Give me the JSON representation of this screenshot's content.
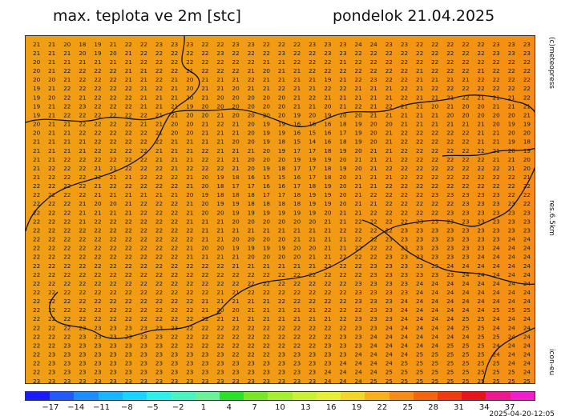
{
  "header": {
    "title": "max. teplota ve 2m [stc]",
    "date": "pondelok 21.04.2025"
  },
  "side_labels": {
    "copyright": "(c)meteopress",
    "resolution": "res.6.5km",
    "model": "icon-eu"
  },
  "footer": {
    "timestamp": "2025-04-20-12:05"
  },
  "colorbar": {
    "tick_labels": [
      "-17",
      "-14",
      "-11",
      "-8",
      "-5",
      "-2",
      "1",
      "4",
      "7",
      "10",
      "13",
      "16",
      "19",
      "22",
      "25",
      "28",
      "31",
      "34",
      "37"
    ],
    "colors": [
      "#1a1aff",
      "#1f5cff",
      "#1d8cff",
      "#1ab4ff",
      "#17d6ff",
      "#2cf0ee",
      "#4cf2c0",
      "#6ef09a",
      "#2ee02e",
      "#76e82c",
      "#a6ee34",
      "#cbf03a",
      "#e6ee3c",
      "#f4d62a",
      "#f5b21e",
      "#f48c17",
      "#f36510",
      "#ef3a12",
      "#ea1418",
      "#f01890",
      "#f020c8"
    ]
  },
  "map_data": {
    "value_grid": [
      [
        21,
        21,
        20,
        18,
        19,
        21,
        22,
        22,
        23,
        23,
        23,
        22,
        22,
        23,
        23,
        22,
        22,
        22,
        23,
        23,
        23,
        24,
        24,
        23,
        23,
        22,
        22,
        22,
        22,
        22,
        23,
        23,
        23
      ],
      [
        21,
        21,
        21,
        20,
        19,
        20,
        21,
        22,
        22,
        22,
        22,
        22,
        23,
        22,
        22,
        22,
        23,
        22,
        22,
        23,
        23,
        22,
        22,
        22,
        22,
        22,
        22,
        22,
        22,
        22,
        23,
        23,
        23
      ],
      [
        20,
        21,
        21,
        21,
        21,
        21,
        21,
        22,
        22,
        22,
        22,
        22,
        22,
        22,
        22,
        21,
        21,
        22,
        22,
        22,
        21,
        22,
        22,
        22,
        22,
        22,
        22,
        22,
        22,
        22,
        22,
        22,
        22
      ],
      [
        20,
        21,
        22,
        22,
        22,
        22,
        21,
        21,
        22,
        22,
        21,
        22,
        22,
        22,
        21,
        20,
        21,
        21,
        22,
        22,
        22,
        22,
        22,
        22,
        22,
        21,
        22,
        22,
        22,
        21,
        22,
        22,
        22
      ],
      [
        20,
        20,
        21,
        22,
        22,
        22,
        21,
        21,
        22,
        21,
        20,
        21,
        21,
        21,
        22,
        21,
        21,
        21,
        21,
        19,
        21,
        22,
        23,
        22,
        22,
        21,
        21,
        21,
        21,
        22,
        22,
        22,
        22
      ],
      [
        19,
        21,
        22,
        22,
        22,
        22,
        22,
        21,
        22,
        21,
        20,
        21,
        21,
        20,
        21,
        21,
        22,
        21,
        21,
        22,
        22,
        21,
        21,
        21,
        22,
        21,
        22,
        22,
        22,
        22,
        22,
        22,
        22
      ],
      [
        19,
        20,
        22,
        21,
        22,
        22,
        22,
        21,
        21,
        21,
        20,
        21,
        20,
        20,
        20,
        20,
        20,
        21,
        22,
        21,
        21,
        21,
        21,
        21,
        22,
        21,
        21,
        21,
        22,
        21,
        21,
        21,
        22
      ],
      [
        19,
        21,
        22,
        23,
        22,
        22,
        22,
        21,
        21,
        21,
        19,
        20,
        20,
        20,
        20,
        20,
        20,
        21,
        21,
        20,
        21,
        22,
        21,
        22,
        21,
        21,
        20,
        21,
        20,
        20,
        21,
        21,
        21
      ],
      [
        19,
        21,
        22,
        22,
        22,
        22,
        22,
        22,
        21,
        21,
        20,
        20,
        21,
        20,
        20,
        20,
        20,
        19,
        20,
        19,
        20,
        20,
        21,
        21,
        21,
        21,
        21,
        20,
        20,
        20,
        20,
        20,
        21
      ],
      [
        20,
        21,
        21,
        22,
        22,
        22,
        22,
        21,
        21,
        20,
        20,
        21,
        22,
        21,
        20,
        19,
        19,
        16,
        16,
        16,
        18,
        19,
        20,
        20,
        21,
        21,
        21,
        21,
        21,
        21,
        20,
        19,
        19
      ],
      [
        20,
        21,
        21,
        22,
        22,
        22,
        22,
        22,
        21,
        20,
        20,
        21,
        21,
        21,
        20,
        19,
        19,
        16,
        15,
        16,
        17,
        19,
        20,
        21,
        22,
        22,
        22,
        22,
        22,
        21,
        21,
        20,
        20
      ],
      [
        21,
        21,
        21,
        21,
        22,
        22,
        22,
        22,
        22,
        21,
        21,
        21,
        21,
        20,
        20,
        19,
        18,
        15,
        14,
        16,
        18,
        19,
        20,
        21,
        22,
        22,
        22,
        22,
        22,
        21,
        21,
        19,
        18
      ],
      [
        21,
        21,
        21,
        21,
        22,
        22,
        22,
        22,
        21,
        21,
        21,
        22,
        21,
        21,
        21,
        20,
        19,
        17,
        17,
        18,
        19,
        20,
        21,
        21,
        22,
        22,
        22,
        22,
        22,
        22,
        21,
        20,
        19
      ],
      [
        21,
        21,
        22,
        22,
        22,
        22,
        22,
        22,
        21,
        21,
        21,
        22,
        21,
        21,
        20,
        20,
        20,
        19,
        19,
        19,
        20,
        21,
        21,
        21,
        22,
        22,
        22,
        22,
        22,
        22,
        21,
        21,
        20
      ],
      [
        21,
        22,
        22,
        22,
        21,
        21,
        22,
        22,
        22,
        21,
        22,
        22,
        22,
        21,
        20,
        19,
        18,
        17,
        17,
        18,
        19,
        20,
        21,
        22,
        22,
        22,
        22,
        22,
        22,
        22,
        22,
        21,
        20
      ],
      [
        21,
        22,
        22,
        22,
        22,
        21,
        21,
        22,
        22,
        22,
        21,
        20,
        19,
        18,
        16,
        15,
        15,
        16,
        17,
        18,
        20,
        21,
        21,
        21,
        22,
        22,
        22,
        22,
        22,
        22,
        22,
        22,
        21
      ],
      [
        22,
        22,
        22,
        22,
        21,
        22,
        22,
        22,
        22,
        22,
        21,
        20,
        18,
        17,
        17,
        16,
        16,
        17,
        18,
        19,
        20,
        21,
        21,
        22,
        22,
        22,
        22,
        22,
        22,
        22,
        22,
        22,
        22
      ],
      [
        22,
        22,
        22,
        22,
        21,
        21,
        21,
        21,
        21,
        21,
        20,
        19,
        18,
        18,
        18,
        17,
        17,
        18,
        19,
        19,
        20,
        21,
        22,
        22,
        22,
        22,
        23,
        23,
        23,
        23,
        23,
        22,
        22
      ],
      [
        22,
        22,
        22,
        21,
        20,
        20,
        21,
        22,
        22,
        22,
        21,
        20,
        19,
        19,
        18,
        18,
        18,
        18,
        19,
        19,
        20,
        21,
        21,
        22,
        22,
        22,
        22,
        22,
        23,
        23,
        23,
        23,
        22
      ],
      [
        22,
        22,
        22,
        21,
        21,
        21,
        21,
        22,
        22,
        22,
        21,
        20,
        20,
        19,
        19,
        19,
        19,
        19,
        19,
        20,
        21,
        21,
        22,
        22,
        22,
        22,
        22,
        23,
        23,
        23,
        23,
        23,
        23
      ],
      [
        22,
        22,
        22,
        21,
        22,
        22,
        22,
        22,
        22,
        22,
        21,
        21,
        21,
        20,
        20,
        20,
        20,
        20,
        20,
        21,
        21,
        22,
        22,
        22,
        22,
        23,
        23,
        23,
        23,
        23,
        23,
        23,
        23
      ],
      [
        22,
        22,
        22,
        22,
        22,
        22,
        22,
        22,
        22,
        22,
        22,
        21,
        21,
        21,
        21,
        21,
        21,
        21,
        21,
        21,
        22,
        22,
        22,
        22,
        23,
        23,
        23,
        23,
        23,
        23,
        23,
        23,
        23
      ],
      [
        22,
        22,
        22,
        22,
        22,
        22,
        22,
        22,
        22,
        22,
        22,
        21,
        21,
        20,
        20,
        20,
        20,
        21,
        21,
        21,
        21,
        22,
        22,
        23,
        23,
        23,
        23,
        23,
        23,
        23,
        23,
        24,
        24
      ],
      [
        22,
        22,
        22,
        22,
        22,
        22,
        22,
        22,
        22,
        22,
        21,
        20,
        20,
        19,
        19,
        19,
        19,
        20,
        20,
        21,
        21,
        22,
        22,
        22,
        23,
        23,
        23,
        23,
        23,
        23,
        24,
        24,
        24
      ],
      [
        22,
        22,
        22,
        22,
        22,
        22,
        22,
        22,
        22,
        22,
        21,
        21,
        21,
        21,
        20,
        20,
        20,
        20,
        21,
        21,
        22,
        22,
        22,
        23,
        23,
        23,
        23,
        23,
        23,
        24,
        24,
        24,
        24
      ],
      [
        22,
        22,
        22,
        22,
        22,
        22,
        22,
        22,
        22,
        22,
        22,
        22,
        22,
        21,
        21,
        21,
        21,
        21,
        21,
        22,
        22,
        22,
        23,
        23,
        23,
        23,
        23,
        24,
        24,
        24,
        24,
        24,
        24
      ],
      [
        22,
        22,
        22,
        22,
        22,
        22,
        22,
        22,
        22,
        22,
        22,
        22,
        22,
        22,
        22,
        22,
        22,
        22,
        22,
        22,
        22,
        22,
        23,
        23,
        23,
        23,
        23,
        23,
        24,
        24,
        24,
        24,
        24
      ],
      [
        22,
        22,
        22,
        22,
        22,
        22,
        22,
        22,
        22,
        22,
        22,
        22,
        22,
        22,
        22,
        22,
        22,
        22,
        22,
        22,
        22,
        23,
        23,
        23,
        23,
        24,
        24,
        24,
        24,
        24,
        24,
        24,
        24
      ],
      [
        22,
        22,
        22,
        22,
        22,
        22,
        22,
        22,
        22,
        22,
        22,
        22,
        21,
        21,
        22,
        22,
        22,
        22,
        22,
        22,
        22,
        23,
        23,
        23,
        23,
        24,
        24,
        24,
        24,
        24,
        24,
        24,
        24
      ],
      [
        22,
        22,
        22,
        22,
        22,
        22,
        22,
        22,
        22,
        22,
        22,
        21,
        21,
        21,
        21,
        21,
        22,
        22,
        22,
        22,
        22,
        23,
        23,
        23,
        24,
        24,
        24,
        24,
        24,
        24,
        24,
        24,
        24
      ],
      [
        22,
        22,
        22,
        22,
        22,
        22,
        22,
        22,
        22,
        22,
        22,
        21,
        20,
        20,
        21,
        21,
        21,
        21,
        21,
        22,
        22,
        22,
        23,
        23,
        24,
        24,
        24,
        24,
        24,
        24,
        25,
        25,
        25
      ],
      [
        22,
        22,
        22,
        22,
        22,
        22,
        22,
        22,
        22,
        22,
        22,
        22,
        21,
        21,
        21,
        21,
        21,
        21,
        21,
        21,
        22,
        23,
        23,
        23,
        24,
        24,
        24,
        24,
        25,
        25,
        24,
        24,
        24
      ],
      [
        22,
        22,
        22,
        23,
        23,
        23,
        23,
        23,
        23,
        23,
        22,
        22,
        22,
        22,
        22,
        22,
        22,
        22,
        22,
        22,
        22,
        23,
        23,
        24,
        24,
        24,
        24,
        24,
        25,
        25,
        24,
        24,
        24
      ],
      [
        22,
        22,
        22,
        23,
        23,
        23,
        23,
        23,
        23,
        22,
        22,
        22,
        22,
        22,
        22,
        22,
        22,
        22,
        22,
        22,
        23,
        23,
        24,
        24,
        24,
        24,
        24,
        24,
        24,
        25,
        25,
        24,
        24
      ],
      [
        22,
        22,
        23,
        23,
        23,
        23,
        23,
        23,
        23,
        22,
        22,
        22,
        22,
        22,
        22,
        22,
        22,
        22,
        22,
        23,
        23,
        23,
        24,
        24,
        24,
        24,
        24,
        25,
        25,
        25,
        24,
        24,
        24
      ],
      [
        22,
        23,
        23,
        23,
        23,
        23,
        23,
        23,
        23,
        23,
        23,
        23,
        23,
        22,
        22,
        22,
        23,
        23,
        23,
        23,
        23,
        24,
        24,
        24,
        24,
        25,
        25,
        25,
        25,
        25,
        24,
        24,
        24
      ],
      [
        22,
        23,
        23,
        23,
        23,
        23,
        23,
        23,
        23,
        23,
        23,
        23,
        23,
        23,
        23,
        23,
        23,
        23,
        23,
        23,
        24,
        24,
        24,
        24,
        25,
        25,
        25,
        25,
        25,
        25,
        25,
        24,
        24
      ],
      [
        22,
        23,
        23,
        23,
        23,
        23,
        23,
        23,
        23,
        23,
        23,
        23,
        23,
        23,
        23,
        23,
        23,
        23,
        23,
        24,
        24,
        24,
        24,
        25,
        25,
        25,
        25,
        25,
        25,
        25,
        25,
        25,
        24
      ],
      [
        23,
        23,
        23,
        23,
        23,
        23,
        23,
        23,
        23,
        23,
        23,
        23,
        23,
        23,
        23,
        23,
        23,
        23,
        23,
        24,
        24,
        24,
        25,
        25,
        25,
        25,
        25,
        25,
        25,
        25,
        25,
        25,
        25
      ]
    ]
  }
}
